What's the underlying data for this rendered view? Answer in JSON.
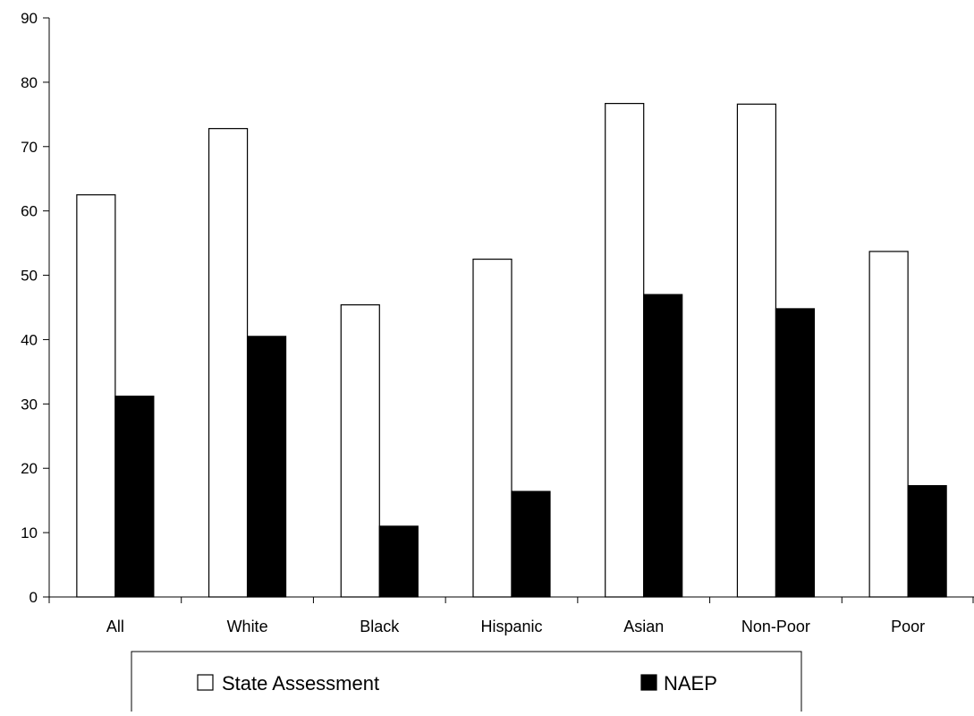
{
  "chart_data": {
    "type": "bar",
    "title": "",
    "xlabel": "",
    "ylabel": "",
    "categories": [
      "All",
      "White",
      "Black",
      "Hispanic",
      "Asian",
      "Non-Poor",
      "Poor"
    ],
    "series": [
      {
        "name": "State Assessment",
        "color": "#ffffff",
        "values": [
          62.5,
          72.8,
          45.4,
          52.5,
          76.7,
          76.6,
          53.7
        ]
      },
      {
        "name": "NAEP",
        "color": "#000000",
        "values": [
          31.2,
          40.5,
          11.0,
          16.4,
          47.0,
          44.8,
          17.3
        ]
      }
    ],
    "ylim": [
      0,
      90
    ],
    "yticks": [
      "0",
      "10",
      "20",
      "30",
      "40",
      "50",
      "60",
      "70",
      "80",
      "90"
    ],
    "grid": false,
    "legend_position": "bottom"
  }
}
